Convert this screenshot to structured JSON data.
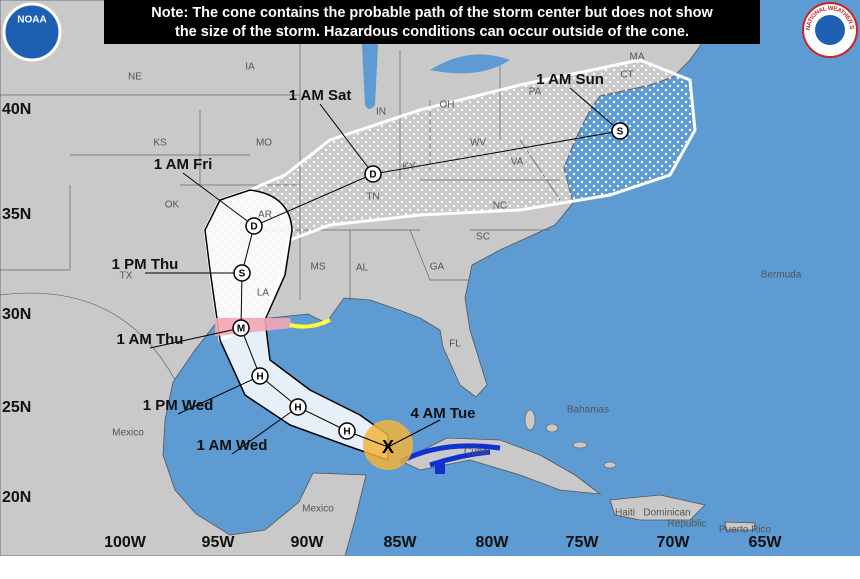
{
  "notice": [
    "Note: The cone contains the probable path of the storm center but does not show",
    "the size of the storm. Hazardous conditions can occur outside of the cone."
  ],
  "logos": {
    "noaa": "NOAA",
    "nws": "NATIONAL WEATHER SERVICE"
  },
  "latitude_labels": [
    "40N",
    "35N",
    "30N",
    "25N",
    "20N"
  ],
  "longitude_labels": [
    "100W",
    "95W",
    "90W",
    "85W",
    "80W",
    "75W",
    "70W",
    "65W"
  ],
  "region_labels": [
    "NE",
    "IA",
    "IN",
    "OH",
    "PA",
    "CT",
    "MA",
    "KS",
    "MO",
    "KY",
    "WV",
    "VA",
    "OK",
    "AR",
    "TN",
    "NC",
    "TX",
    "SC",
    "MS",
    "AL",
    "GA",
    "LA",
    "FL",
    "Mexico",
    "Bermuda",
    "Bahamas",
    "Cuba",
    "Mexico",
    "Haiti",
    "Dominican",
    "Republic",
    "Puerto Rico"
  ],
  "forecast_points": [
    {
      "time": "1 AM Sun",
      "symbol": "S"
    },
    {
      "time": "1 AM Sat",
      "symbol": "D"
    },
    {
      "time": "1 AM Fri",
      "symbol": "D"
    },
    {
      "time": "1 PM Thu",
      "symbol": "S"
    },
    {
      "time": "1 AM Thu",
      "symbol": "M"
    },
    {
      "time": "1 PM Wed",
      "symbol": "H"
    },
    {
      "time": "1 AM Wed",
      "symbol": "H"
    },
    {
      "symbol": "H"
    }
  ],
  "current_position": {
    "time": "4 AM Tue",
    "symbol": "X"
  }
}
